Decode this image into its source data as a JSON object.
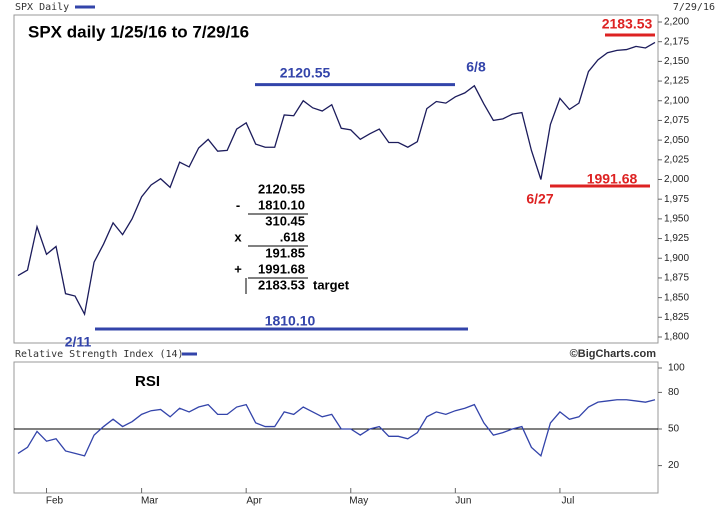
{
  "header": {
    "title": "SPX Daily",
    "date": "7/29/16"
  },
  "rsi_header": {
    "title": "Relative Strength Index (14)",
    "credit": "©BigCharts.com"
  },
  "chart_data": [
    {
      "type": "line",
      "title": "SPX daily 1/25/16 to 7/29/16",
      "color": "#1c1c5c",
      "categories": [
        null,
        null,
        null,
        "Feb",
        null,
        null,
        null,
        null,
        null,
        null,
        null,
        null,
        null,
        "Mar",
        null,
        null,
        null,
        null,
        null,
        null,
        null,
        null,
        null,
        null,
        "Apr",
        null,
        null,
        null,
        null,
        null,
        null,
        null,
        null,
        null,
        null,
        "May",
        null,
        null,
        null,
        null,
        null,
        null,
        null,
        null,
        null,
        null,
        "Jun",
        null,
        null,
        null,
        null,
        null,
        null,
        null,
        null,
        null,
        null,
        "Jul",
        null,
        null,
        null,
        null,
        null,
        null,
        null,
        null,
        null,
        null
      ],
      "values": [
        1878,
        1885,
        1940,
        1905,
        1915,
        1855,
        1852,
        1829,
        1895,
        1918,
        1945,
        1930,
        1950,
        1978,
        1993,
        2001,
        1990,
        2022,
        2016,
        2040,
        2051,
        2036,
        2037,
        2064,
        2072,
        2045,
        2041,
        2041,
        2082,
        2081,
        2100,
        2091,
        2087,
        2095,
        2065,
        2063,
        2051,
        2058,
        2064,
        2047,
        2047,
        2041,
        2048,
        2090,
        2099,
        2097,
        2105,
        2110,
        2119,
        2096,
        2075,
        2077,
        2083,
        2085,
        2037,
        2000,
        2070,
        2103,
        2089,
        2097,
        2137,
        2152,
        2161,
        2164,
        2165,
        2169,
        2167,
        2174
      ],
      "ylim": [
        1800,
        2200
      ],
      "yticks": [
        {
          "value": 1800,
          "label": "1,800"
        },
        {
          "value": 1825,
          "label": "1,825"
        },
        {
          "value": 1850,
          "label": "1,850"
        },
        {
          "value": 1875,
          "label": "1,875"
        },
        {
          "value": 1900,
          "label": "1,900"
        },
        {
          "value": 1925,
          "label": "1,925"
        },
        {
          "value": 1950,
          "label": "1,950"
        },
        {
          "value": 1975,
          "label": "1,975"
        },
        {
          "value": 2000,
          "label": "2,000"
        },
        {
          "value": 2025,
          "label": "2,025"
        },
        {
          "value": 2050,
          "label": "2,050"
        },
        {
          "value": 2075,
          "label": "2,075"
        },
        {
          "value": 2100,
          "label": "2,100"
        },
        {
          "value": 2125,
          "label": "2,125"
        },
        {
          "value": 2150,
          "label": "2,150"
        },
        {
          "value": 2175,
          "label": "2,175"
        },
        {
          "value": 2200,
          "label": "2,200"
        }
      ],
      "levels": [
        {
          "value": 2120.55,
          "color": "#3344aa"
        },
        {
          "value": 1810.1,
          "label": "1810.10",
          "color": "#3344aa"
        },
        {
          "value": 1991.68,
          "color": "#dd2222"
        },
        {
          "value": 2183.53,
          "color": "#dd2222"
        }
      ],
      "annotations": [
        {
          "text": "6/8",
          "color": "#3344aa"
        },
        {
          "text": "2/11",
          "color": "#3344aa"
        },
        {
          "text": "6/27",
          "color": "#dd2222"
        }
      ],
      "calculation": [
        {
          "text": "2120.55"
        },
        {
          "op": "-",
          "text": "1810.10"
        },
        {
          "text": "310.45"
        },
        {
          "op": "x",
          "text": ".618"
        },
        {
          "text": "191.85"
        },
        {
          "op": "+",
          "text": "1991.68"
        },
        {
          "text": "2183.53",
          "note": "target"
        }
      ]
    },
    {
      "type": "line",
      "title": "RSI",
      "color": "#3344aa",
      "values": [
        30,
        35,
        48,
        40,
        42,
        32,
        30,
        28,
        45,
        52,
        58,
        52,
        56,
        62,
        65,
        66,
        60,
        67,
        64,
        68,
        70,
        62,
        62,
        68,
        70,
        55,
        52,
        52,
        64,
        62,
        68,
        64,
        60,
        62,
        50,
        50,
        45,
        50,
        52,
        44,
        44,
        42,
        47,
        60,
        64,
        62,
        65,
        67,
        70,
        55,
        45,
        47,
        50,
        52,
        35,
        28,
        55,
        64,
        58,
        60,
        68,
        72,
        73,
        74,
        74,
        73,
        72,
        74
      ],
      "ylim": [
        0,
        100
      ],
      "yticks": [
        20,
        50,
        80,
        100
      ],
      "reference_line": 50
    }
  ]
}
